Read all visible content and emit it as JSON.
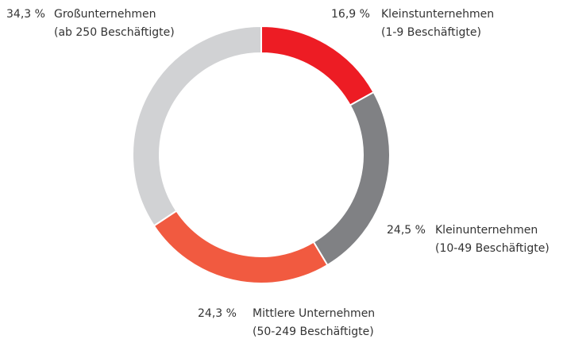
{
  "chart_data": {
    "type": "donut",
    "categories": [
      "Kleinstunternehmen",
      "Kleinunternehmen",
      "Mittlere Unternehmen",
      "Großunternehmen"
    ],
    "descriptions": [
      "(1-9 Beschäftigte)",
      "(10-49 Beschäftigte)",
      "(50-249 Beschäftigte)",
      "(ab 250 Beschäftigte)"
    ],
    "values": [
      16.9,
      24.5,
      24.3,
      34.3
    ],
    "value_labels": [
      "16,9 %",
      "24,5 %",
      "24,3 %",
      "34,3 %"
    ],
    "colors": [
      "#ed1c24",
      "#808184",
      "#f15a40",
      "#d1d2d4"
    ]
  }
}
